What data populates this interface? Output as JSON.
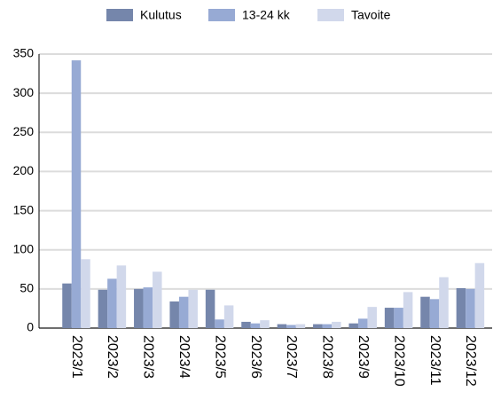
{
  "chart_data": {
    "type": "bar",
    "categories": [
      "2023/1",
      "2023/2",
      "2023/3",
      "2023/4",
      "2023/5",
      "2023/6",
      "2023/7",
      "2023/8",
      "2023/9",
      "2023/10",
      "2023/11",
      "2023/12"
    ],
    "series": [
      {
        "name": "Kulutus",
        "color": "#7586ab",
        "values": [
          57,
          49,
          50,
          34,
          49,
          8,
          5,
          5,
          6,
          26,
          40,
          51
        ]
      },
      {
        "name": "13-24 kk",
        "color": "#97aad4",
        "values": [
          342,
          63,
          52,
          40,
          11,
          6,
          4,
          5,
          12,
          26,
          37,
          50
        ]
      },
      {
        "name": "Tavoite",
        "color": "#d1d8eb",
        "values": [
          88,
          80,
          72,
          49,
          29,
          10,
          5,
          8,
          27,
          46,
          65,
          83
        ]
      }
    ],
    "ylim": [
      0,
      350
    ],
    "yticks": [
      0,
      50,
      100,
      150,
      200,
      250,
      300,
      350
    ],
    "grid": true
  }
}
